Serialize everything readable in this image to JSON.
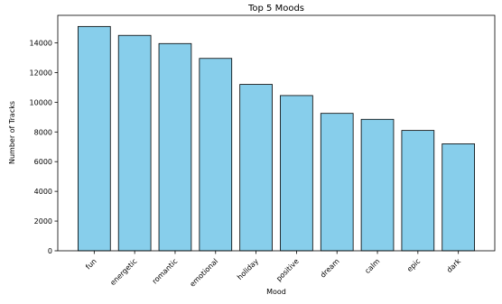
{
  "chart_data": {
    "type": "bar",
    "title": "Top 5 Moods",
    "xlabel": "Mood",
    "ylabel": "Number of Tracks",
    "categories": [
      "fun",
      "energetic",
      "romantic",
      "emotional",
      "holiday",
      "positive",
      "dream",
      "calm",
      "epic",
      "dark"
    ],
    "values": [
      15100,
      14500,
      13950,
      12950,
      11200,
      10450,
      9250,
      8850,
      8100,
      7200
    ],
    "ylim": [
      0,
      15850
    ],
    "yticks": [
      0,
      2000,
      4000,
      6000,
      8000,
      10000,
      12000,
      14000
    ],
    "grid": false,
    "bar_color": "#87CEEB",
    "bar_edge_color": "#000000"
  }
}
